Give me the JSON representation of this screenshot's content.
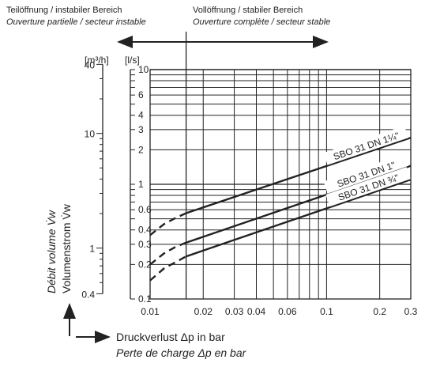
{
  "header": {
    "left_de": "Teilöffnung / instabiler Bereich",
    "left_fr": "Ouverture partielle / secteur instable",
    "right_de": "Vollöffnung / stabiler Bereich",
    "right_fr": "Ouverture complète / secteur stable"
  },
  "units": {
    "m3h": "[m³/h]",
    "ls": "[l/s]"
  },
  "axis": {
    "ylabel_fr": "Débit volume V̇w",
    "ylabel_de": "Volumenstrom V̇w",
    "xlabel_de": "Druckverlust Δp in bar",
    "xlabel_fr": "Perte de charge Δp en bar"
  },
  "chart_data": {
    "type": "line",
    "x_scale": "log",
    "y_scale": "log",
    "xlim": [
      0.01,
      0.3
    ],
    "ylim": [
      0.1,
      10
    ],
    "grid": true,
    "stability_boundary_x": 0.016,
    "x_ticks": [
      {
        "v": 0.01,
        "label": "0.01"
      },
      {
        "v": 0.02,
        "label": "0.02"
      },
      {
        "v": 0.03,
        "label": "0.03"
      },
      {
        "v": 0.04,
        "label": "0.04"
      },
      {
        "v": 0.06,
        "label": "0.06"
      },
      {
        "v": 0.1,
        "label": "0.1"
      },
      {
        "v": 0.2,
        "label": "0.2"
      },
      {
        "v": 0.3,
        "label": "0.3"
      }
    ],
    "x_grid": [
      0.01,
      0.016,
      0.02,
      0.03,
      0.04,
      0.05,
      0.06,
      0.07,
      0.08,
      0.09,
      0.1,
      0.2,
      0.3
    ],
    "y_grid": [
      0.1,
      0.2,
      0.3,
      0.4,
      0.5,
      0.6,
      0.7,
      0.8,
      0.9,
      1,
      2,
      3,
      4,
      5,
      6,
      7,
      8,
      9,
      10
    ],
    "y_ticks_ls": [
      {
        "v": 0.1,
        "label": "0.1"
      },
      {
        "v": 0.2,
        "label": "0.2"
      },
      {
        "v": 0.3,
        "label": "0.3"
      },
      {
        "v": 0.4,
        "label": "0.4"
      },
      {
        "v": 0.6,
        "label": "0.6"
      },
      {
        "v": 1,
        "label": "1"
      },
      {
        "v": 2,
        "label": "2"
      },
      {
        "v": 3,
        "label": "3"
      },
      {
        "v": 4,
        "label": "4"
      },
      {
        "v": 6,
        "label": "6"
      },
      {
        "v": 10,
        "label": "10"
      }
    ],
    "y_ticks_m3h": [
      {
        "v": 0.4,
        "label": "0.4"
      },
      {
        "v": 1,
        "label": "1"
      },
      {
        "v": 10,
        "label": "10"
      },
      {
        "v": 40,
        "label": "40"
      }
    ],
    "series": [
      {
        "name": "SBO 31 DN 1¼\"",
        "dashed": [
          [
            0.01,
            0.36
          ],
          [
            0.012,
            0.45
          ],
          [
            0.014,
            0.51
          ],
          [
            0.016,
            0.56
          ]
        ],
        "solid": [
          [
            0.016,
            0.56
          ],
          [
            0.3,
            2.55
          ]
        ]
      },
      {
        "name": "SBO 31 DN 1\"",
        "dashed": [
          [
            0.01,
            0.2
          ],
          [
            0.012,
            0.25
          ],
          [
            0.014,
            0.285
          ],
          [
            0.016,
            0.31
          ]
        ],
        "solid": [
          [
            0.016,
            0.31
          ],
          [
            0.3,
            1.45
          ]
        ]
      },
      {
        "name": "SBO 31 DN ¾\"",
        "dashed": [
          [
            0.01,
            0.145
          ],
          [
            0.012,
            0.185
          ],
          [
            0.014,
            0.21
          ],
          [
            0.016,
            0.235
          ]
        ],
        "solid": [
          [
            0.016,
            0.235
          ],
          [
            0.3,
            1.1
          ]
        ]
      }
    ]
  }
}
